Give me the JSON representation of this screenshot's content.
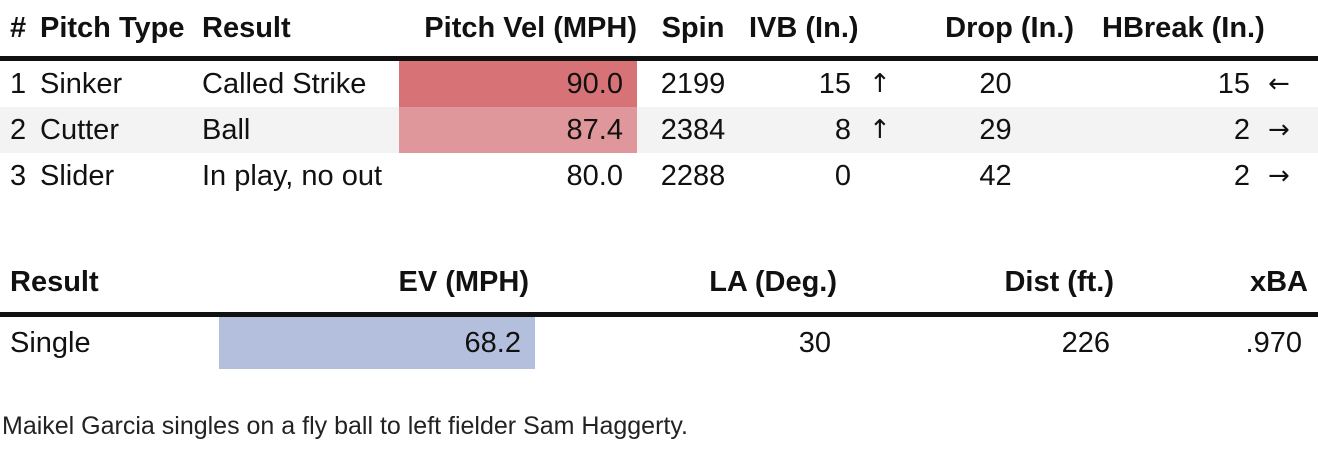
{
  "pitch_table": {
    "headers": {
      "num": "#",
      "type": "Pitch Type",
      "result": "Result",
      "velocity": "Pitch Vel (MPH)",
      "spin": "Spin",
      "ivb": "IVB (In.)",
      "drop": "Drop (In.)",
      "hbreak": "HBreak (In.)"
    },
    "rows": [
      {
        "num": "1",
        "type": "Sinker",
        "result": "Called Strike",
        "velocity": "90.0",
        "spin": "2199",
        "ivb": "15",
        "ivb_arrow": "↑",
        "drop": "20",
        "hbreak": "15",
        "hbreak_arrow": "←"
      },
      {
        "num": "2",
        "type": "Cutter",
        "result": "Ball",
        "velocity": "87.4",
        "spin": "2384",
        "ivb": "8",
        "ivb_arrow": "↑",
        "drop": "29",
        "hbreak": "2",
        "hbreak_arrow": "→"
      },
      {
        "num": "3",
        "type": "Slider",
        "result": "In play, no out",
        "velocity": "80.0",
        "spin": "2288",
        "ivb": "0",
        "ivb_arrow": "",
        "drop": "42",
        "hbreak": "2",
        "hbreak_arrow": "→"
      }
    ],
    "velocity_colors": [
      "#d77377",
      "#e0979b",
      "#ffffff"
    ]
  },
  "batted_ball_table": {
    "headers": {
      "result": "Result",
      "ev": "EV (MPH)",
      "la": "LA (Deg.)",
      "dist": "Dist (ft.)",
      "xba": "xBA"
    },
    "rows": [
      {
        "result": "Single",
        "ev": "68.2",
        "la": "30",
        "dist": "226",
        "xba": ".970"
      }
    ],
    "ev_color": "#b3bfdc"
  },
  "description": "Maikel Garcia singles on a fly ball to left fielder Sam Haggerty."
}
